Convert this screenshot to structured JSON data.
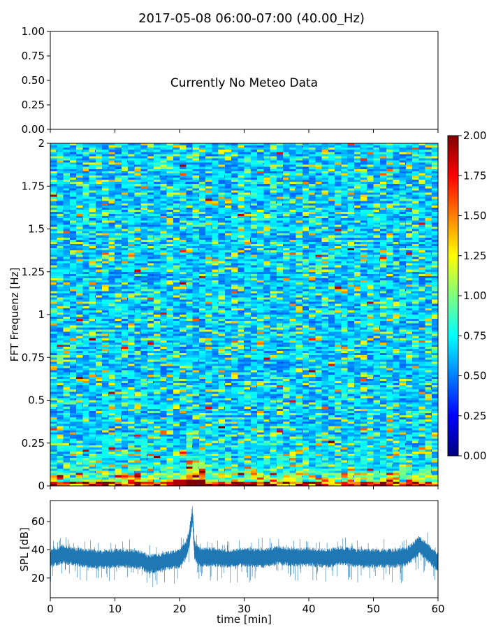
{
  "title": "2017-05-08 06:00-07:00 (40.00_Hz)",
  "chart_data": [
    {
      "type": "text-panel",
      "message": "Currently No Meteo Data",
      "ylim": [
        0,
        1
      ],
      "yticks": [
        "0.00",
        "0.25",
        "0.50",
        "0.75",
        "1.00"
      ]
    },
    {
      "type": "heatmap",
      "ylabel": "FFT Frequenz [Hz]",
      "xlim": [
        0,
        60
      ],
      "ylim": [
        0,
        2
      ],
      "yticks": [
        "0",
        "0.25",
        "0.5",
        "0.75",
        "1",
        "1.25",
        "1.5",
        "1.75",
        "2"
      ],
      "colormap": "jet",
      "colorbar": {
        "range": [
          0,
          2
        ],
        "ticks": [
          "0.00",
          "0.25",
          "0.50",
          "0.75",
          "1.00",
          "1.25",
          "1.50",
          "1.75",
          "2.00"
        ]
      }
    },
    {
      "type": "line",
      "xlabel": "time [min]",
      "ylabel": "SPL [dB]",
      "xlim": [
        0,
        60
      ],
      "ylim": [
        6,
        75
      ],
      "xticks": [
        "0",
        "10",
        "20",
        "30",
        "40",
        "50",
        "60"
      ],
      "yticks": [
        "20",
        "40",
        "60"
      ],
      "color": "#1f77b4",
      "x": [
        0,
        2,
        4,
        6,
        8,
        10,
        12,
        14,
        15,
        17,
        19,
        20,
        21,
        21.5,
        22,
        22.3,
        23,
        25,
        28,
        30,
        33,
        35,
        38,
        40,
        43,
        45,
        48,
        50,
        53,
        55,
        56,
        57,
        58,
        59,
        60
      ],
      "y": [
        34,
        37,
        35,
        34,
        33,
        34,
        34,
        33,
        30,
        31,
        33,
        34,
        40,
        48,
        65,
        40,
        35,
        35,
        34,
        35,
        34,
        36,
        35,
        35,
        34,
        36,
        34,
        34,
        34,
        35,
        38,
        43,
        40,
        35,
        31
      ]
    }
  ]
}
